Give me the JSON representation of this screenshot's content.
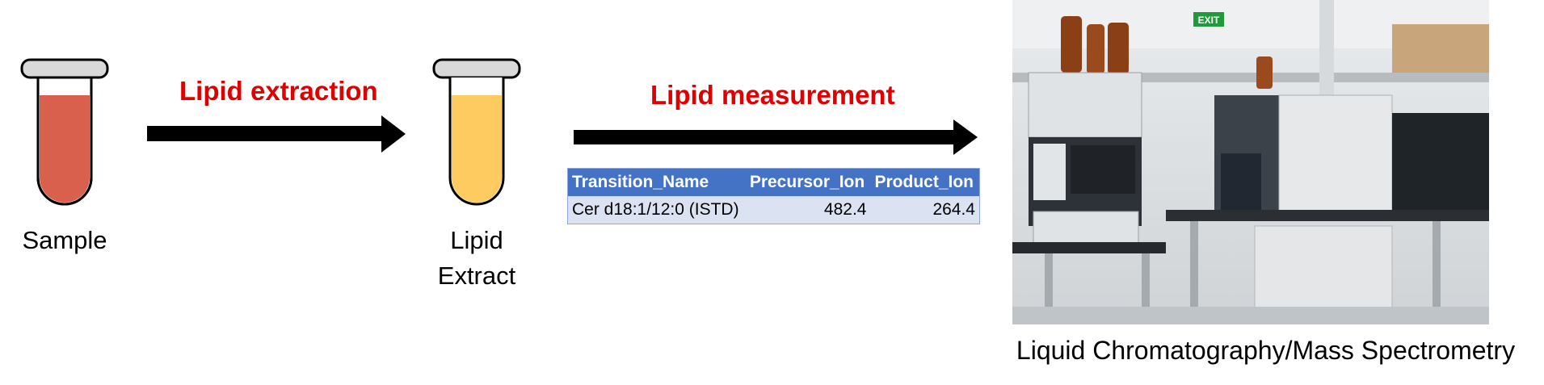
{
  "sample": {
    "label": "Sample",
    "fill": "#d9604c"
  },
  "extract": {
    "label_line1": "Lipid",
    "label_line2": "Extract",
    "fill": "#fecb61"
  },
  "step1": {
    "label": "Lipid extraction"
  },
  "step2": {
    "label": "Lipid measurement"
  },
  "transition_table": {
    "headers": [
      "Transition_Name",
      "Precursor_Ion",
      "Product_Ion"
    ],
    "rows": [
      {
        "name": "Cer d18:1/12:0 (ISTD)",
        "precursor": "482.4",
        "product": "264.4"
      }
    ]
  },
  "instrument": {
    "caption": "Liquid Chromatography/Mass Spectrometry",
    "exit_sign": "EXIT"
  },
  "colors": {
    "accent_red": "#e00000",
    "table_header": "#4472c4",
    "table_row": "#dbe3f3"
  }
}
